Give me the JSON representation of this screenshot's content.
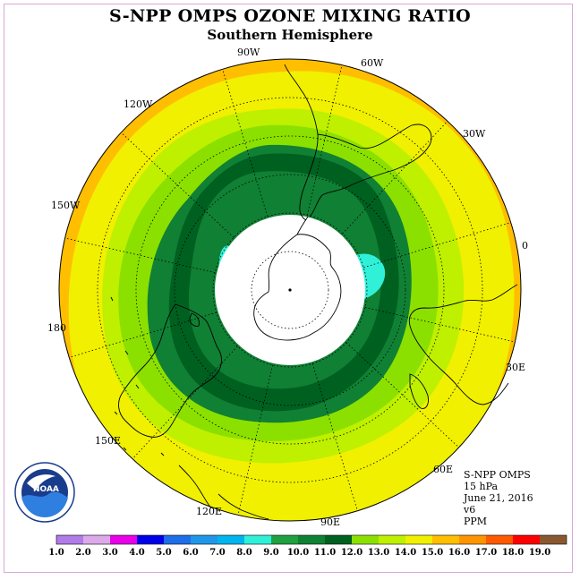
{
  "title": "S-NPP OMPS OZONE MIXING RATIO",
  "subtitle": "Southern Hemisphere",
  "longitude_labels": [
    "90W",
    "60W",
    "30W",
    "0",
    "30E",
    "60E",
    "90E",
    "120E",
    "150E",
    "180",
    "150W",
    "120W"
  ],
  "info": {
    "product": "S-NPP OMPS",
    "level": "15 hPa",
    "date": "June 21, 2016",
    "version": "v6",
    "units": "PPM"
  },
  "logo_text": "NOAA",
  "colorbar": {
    "ticks": [
      "1.0",
      "2.0",
      "3.0",
      "4.0",
      "5.0",
      "6.0",
      "7.0",
      "8.0",
      "9.0",
      "10.0",
      "11.0",
      "12.0",
      "13.0",
      "14.0",
      "15.0",
      "16.0",
      "17.0",
      "18.0",
      "19.0"
    ],
    "colors": [
      "#b07ce8",
      "#dcaae8",
      "#e800e8",
      "#0000e8",
      "#1e6ee8",
      "#2096e8",
      "#00b4ee",
      "#30f0d8",
      "#20a040",
      "#108034",
      "#006020",
      "#8ce000",
      "#bef000",
      "#f0f000",
      "#ffbe00",
      "#ff9400",
      "#ff5a00",
      "#ff0000",
      "#8a5830"
    ]
  },
  "colors": {
    "outer_band": "#ffbe00",
    "level_14": "#f0f000",
    "level_13": "#bef000",
    "level_12": "#8ce000",
    "level_10": "#108034",
    "level_11": "#006020",
    "level_8": "#30f0d8",
    "no_data": "#ffffff"
  }
}
